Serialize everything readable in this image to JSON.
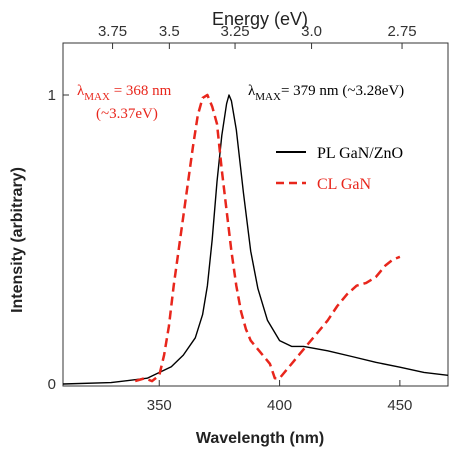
{
  "chart_data": {
    "type": "line",
    "xlabel": "Wavelength (nm)",
    "ylabel": "Intensity (arbitrary)",
    "top_axis_label": "Energy (eV)",
    "xlim": [
      310,
      470
    ],
    "ylim": [
      0,
      1.0
    ],
    "x_ticks": [
      350,
      400,
      450
    ],
    "y_ticks": [
      0,
      1
    ],
    "y_tick_labels": [
      "0",
      "1"
    ],
    "top_ticks": [
      {
        "label": "3.75",
        "wavelength": 330.6
      },
      {
        "label": "3.5",
        "wavelength": 354.2
      },
      {
        "label": "3.25",
        "wavelength": 381.5
      },
      {
        "label": "3.0",
        "wavelength": 413.3
      },
      {
        "label": "2.75",
        "wavelength": 450.9
      }
    ],
    "grid": false,
    "legend_position": "right",
    "series": [
      {
        "name": "PL GaN/ZnO",
        "color": "#000000",
        "dash": "solid",
        "x": [
          310,
          330,
          345,
          355,
          360,
          365,
          368,
          370,
          372,
          374,
          376,
          378,
          379,
          380,
          382,
          385,
          388,
          391,
          395,
          400,
          405,
          410,
          420,
          430,
          440,
          450,
          460,
          470
        ],
        "y": [
          0.0,
          0.005,
          0.02,
          0.06,
          0.1,
          0.16,
          0.24,
          0.34,
          0.5,
          0.7,
          0.86,
          0.97,
          1.0,
          0.98,
          0.88,
          0.66,
          0.46,
          0.33,
          0.22,
          0.15,
          0.13,
          0.13,
          0.115,
          0.095,
          0.075,
          0.058,
          0.04,
          0.03
        ]
      },
      {
        "name": "CL GaN",
        "color": "#e8261c",
        "dash": "dashed",
        "x": [
          340,
          344,
          347,
          350,
          352,
          354,
          356,
          358,
          360,
          362,
          364,
          366,
          368,
          370,
          372,
          374,
          376,
          378,
          380,
          382,
          384,
          386,
          388,
          390,
          392,
          394,
          396,
          398,
          400,
          403,
          406,
          409,
          412,
          416,
          420,
          424,
          428,
          432,
          436,
          440,
          444,
          447,
          450
        ],
        "y": [
          0.01,
          0.02,
          0.01,
          0.03,
          0.1,
          0.2,
          0.34,
          0.46,
          0.58,
          0.7,
          0.82,
          0.93,
          0.99,
          1.0,
          0.96,
          0.9,
          0.74,
          0.6,
          0.46,
          0.34,
          0.25,
          0.19,
          0.15,
          0.13,
          0.11,
          0.09,
          0.07,
          0.02,
          0.02,
          0.05,
          0.08,
          0.11,
          0.14,
          0.18,
          0.22,
          0.27,
          0.31,
          0.34,
          0.35,
          0.37,
          0.41,
          0.43,
          0.44
        ]
      }
    ],
    "annotations": {
      "cl_peak": {
        "symbol": "λ",
        "subscript": "MAX",
        "value": " = 368 nm",
        "energy": "(~3.37eV)",
        "color": "#e8261c"
      },
      "pl_peak": {
        "symbol": "λ",
        "subscript": "MAX",
        "value": "= 379 nm (~3.28eV)",
        "color": "#000000"
      }
    }
  }
}
